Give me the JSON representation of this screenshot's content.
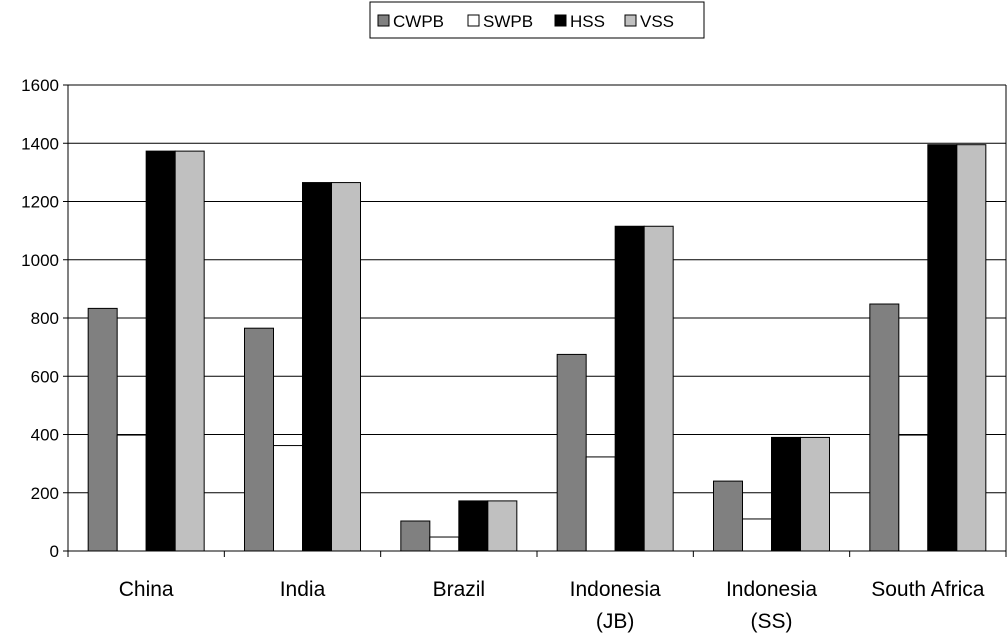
{
  "chart_data": {
    "type": "bar",
    "title": "",
    "xlabel": "",
    "ylabel": "",
    "ylim": [
      0,
      1600
    ],
    "yticks": [
      0,
      200,
      400,
      600,
      800,
      1000,
      1200,
      1400,
      1600
    ],
    "grid": "horizontal",
    "legend_position": "top-center",
    "categories": [
      [
        "China"
      ],
      [
        "India"
      ],
      [
        "Brazil"
      ],
      [
        "Indonesia",
        "(JB)"
      ],
      [
        "Indonesia",
        "(SS)"
      ],
      [
        "South Africa"
      ]
    ],
    "series": [
      {
        "name": "CWPB",
        "color": "#808080",
        "values": [
          833,
          765,
          103,
          675,
          240,
          848
        ]
      },
      {
        "name": "SWPB",
        "color": "#ffffff",
        "values": [
          398,
          362,
          48,
          323,
          110,
          398
        ]
      },
      {
        "name": "HSS",
        "color": "#000000",
        "values": [
          1373,
          1265,
          172,
          1115,
          390,
          1395
        ]
      },
      {
        "name": "VSS",
        "color": "#c0c0c0",
        "values": [
          1373,
          1265,
          172,
          1115,
          390,
          1395
        ]
      }
    ]
  }
}
